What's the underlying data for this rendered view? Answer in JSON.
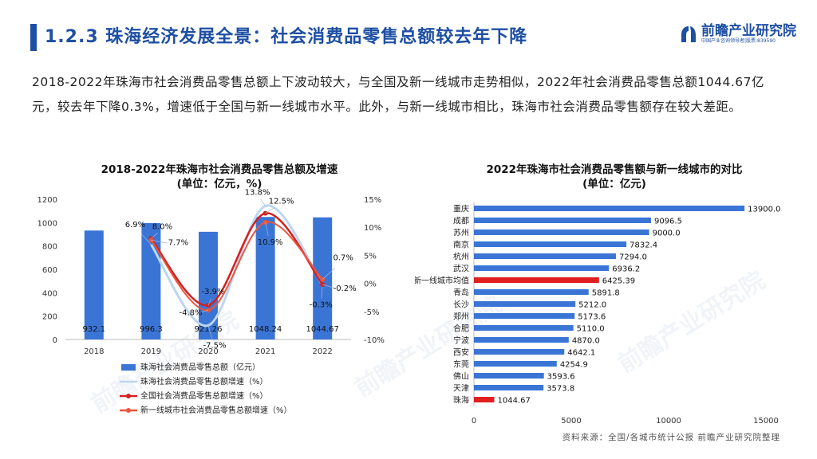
{
  "header": {
    "title": "1.2.3 珠海经济发展全景：社会消费品零售总额较去年下降",
    "logo_name": "前瞻产业研究院",
    "logo_sub": "中国产业咨询领导者|股票:839590"
  },
  "intro": "2018-2022年珠海市社会消费品零售总额上下波动较大，与全国及新一线城市走势相似，2022年社会消费品零售总额1044.67亿元，较去年下降0.3%，增速低于全国与新一线城市水平。此外，与新一线城市相比，珠海市社会消费品零售额存在较大差距。",
  "source": "资料来源：全国/各城市统计公报 前瞻产业研究院整理",
  "watermark": "前瞻产业研究院",
  "colors": {
    "brand": "#1e4fa3",
    "bar": "#3a75d6",
    "highlight": "#e02020",
    "national": "#d42020",
    "newtier": "#e8563f",
    "zhuhai_growth": "#bcd6f3"
  },
  "chart_data": [
    {
      "type": "bar",
      "title": "2018-2022年珠海市社会消费品零售总额及增速",
      "subtitle": "(单位：亿元，%)",
      "categories": [
        "2018",
        "2019",
        "2020",
        "2021",
        "2022"
      ],
      "ylim": [
        0,
        1200
      ],
      "yticks": [
        0,
        200,
        400,
        600,
        800,
        1000,
        1200
      ],
      "y2lim": [
        -10,
        15
      ],
      "y2ticks": [
        "-10%",
        "-5%",
        "0%",
        "5%",
        "10%",
        "15%"
      ],
      "bars": {
        "name": "珠海社会消费品零售总额（亿元）",
        "values": [
          932.1,
          996.3,
          921.26,
          1048.24,
          1044.67
        ],
        "labels": [
          "932.1",
          "996.3",
          "921.26",
          "1048.24",
          "1044.67"
        ]
      },
      "series": [
        {
          "name": "珠海社会消费品零售总额增速（%）",
          "values": [
            null,
            6.9,
            -7.5,
            13.8,
            -0.3
          ],
          "labels": [
            "",
            "6.9%",
            "-7.5%",
            "13.8%",
            "-0.3%"
          ]
        },
        {
          "name": "全国社会消费品零售总额增速（%）",
          "values": [
            null,
            8.0,
            -3.9,
            12.5,
            -0.2
          ],
          "labels": [
            "",
            "8.0%",
            "-3.9%",
            "12.5%",
            "-0.2%"
          ]
        },
        {
          "name": "新一线城市社会消费品零售总额增速（%）",
          "values": [
            null,
            7.7,
            -4.8,
            10.9,
            0.7
          ],
          "labels": [
            "",
            "7.7%",
            "-4.8%",
            "10.9%",
            "0.7%"
          ]
        }
      ]
    },
    {
      "type": "bar",
      "orientation": "horizontal",
      "title": "2022年珠海市社会消费品零售额与新一线城市的对比",
      "subtitle": "(单位：亿元)",
      "categories": [
        "重庆",
        "成都",
        "苏州",
        "南京",
        "杭州",
        "武汉",
        "新一线城市均值",
        "青岛",
        "长沙",
        "郑州",
        "合肥",
        "宁波",
        "西安",
        "东莞",
        "佛山",
        "天津",
        "珠海"
      ],
      "values": [
        13900.0,
        9096.5,
        9000.0,
        7832.4,
        7294.0,
        6936.2,
        6425.39,
        5891.8,
        5212.0,
        5173.6,
        5110.0,
        4870.0,
        4642.1,
        4254.9,
        3593.6,
        3573.8,
        1044.67
      ],
      "labels": [
        "13900.0",
        "9096.5",
        "9000.0",
        "7832.4",
        "7294.0",
        "6936.2",
        "6425.39",
        "5891.8",
        "5212.0",
        "5173.6",
        "5110.0",
        "4870.0",
        "4642.1",
        "4254.9",
        "3593.6",
        "3573.8",
        "1044.67"
      ],
      "highlight": [
        "新一线城市均值",
        "珠海"
      ],
      "xlim": [
        0,
        15000
      ],
      "xticks": [
        0,
        5000,
        10000,
        15000
      ]
    }
  ]
}
